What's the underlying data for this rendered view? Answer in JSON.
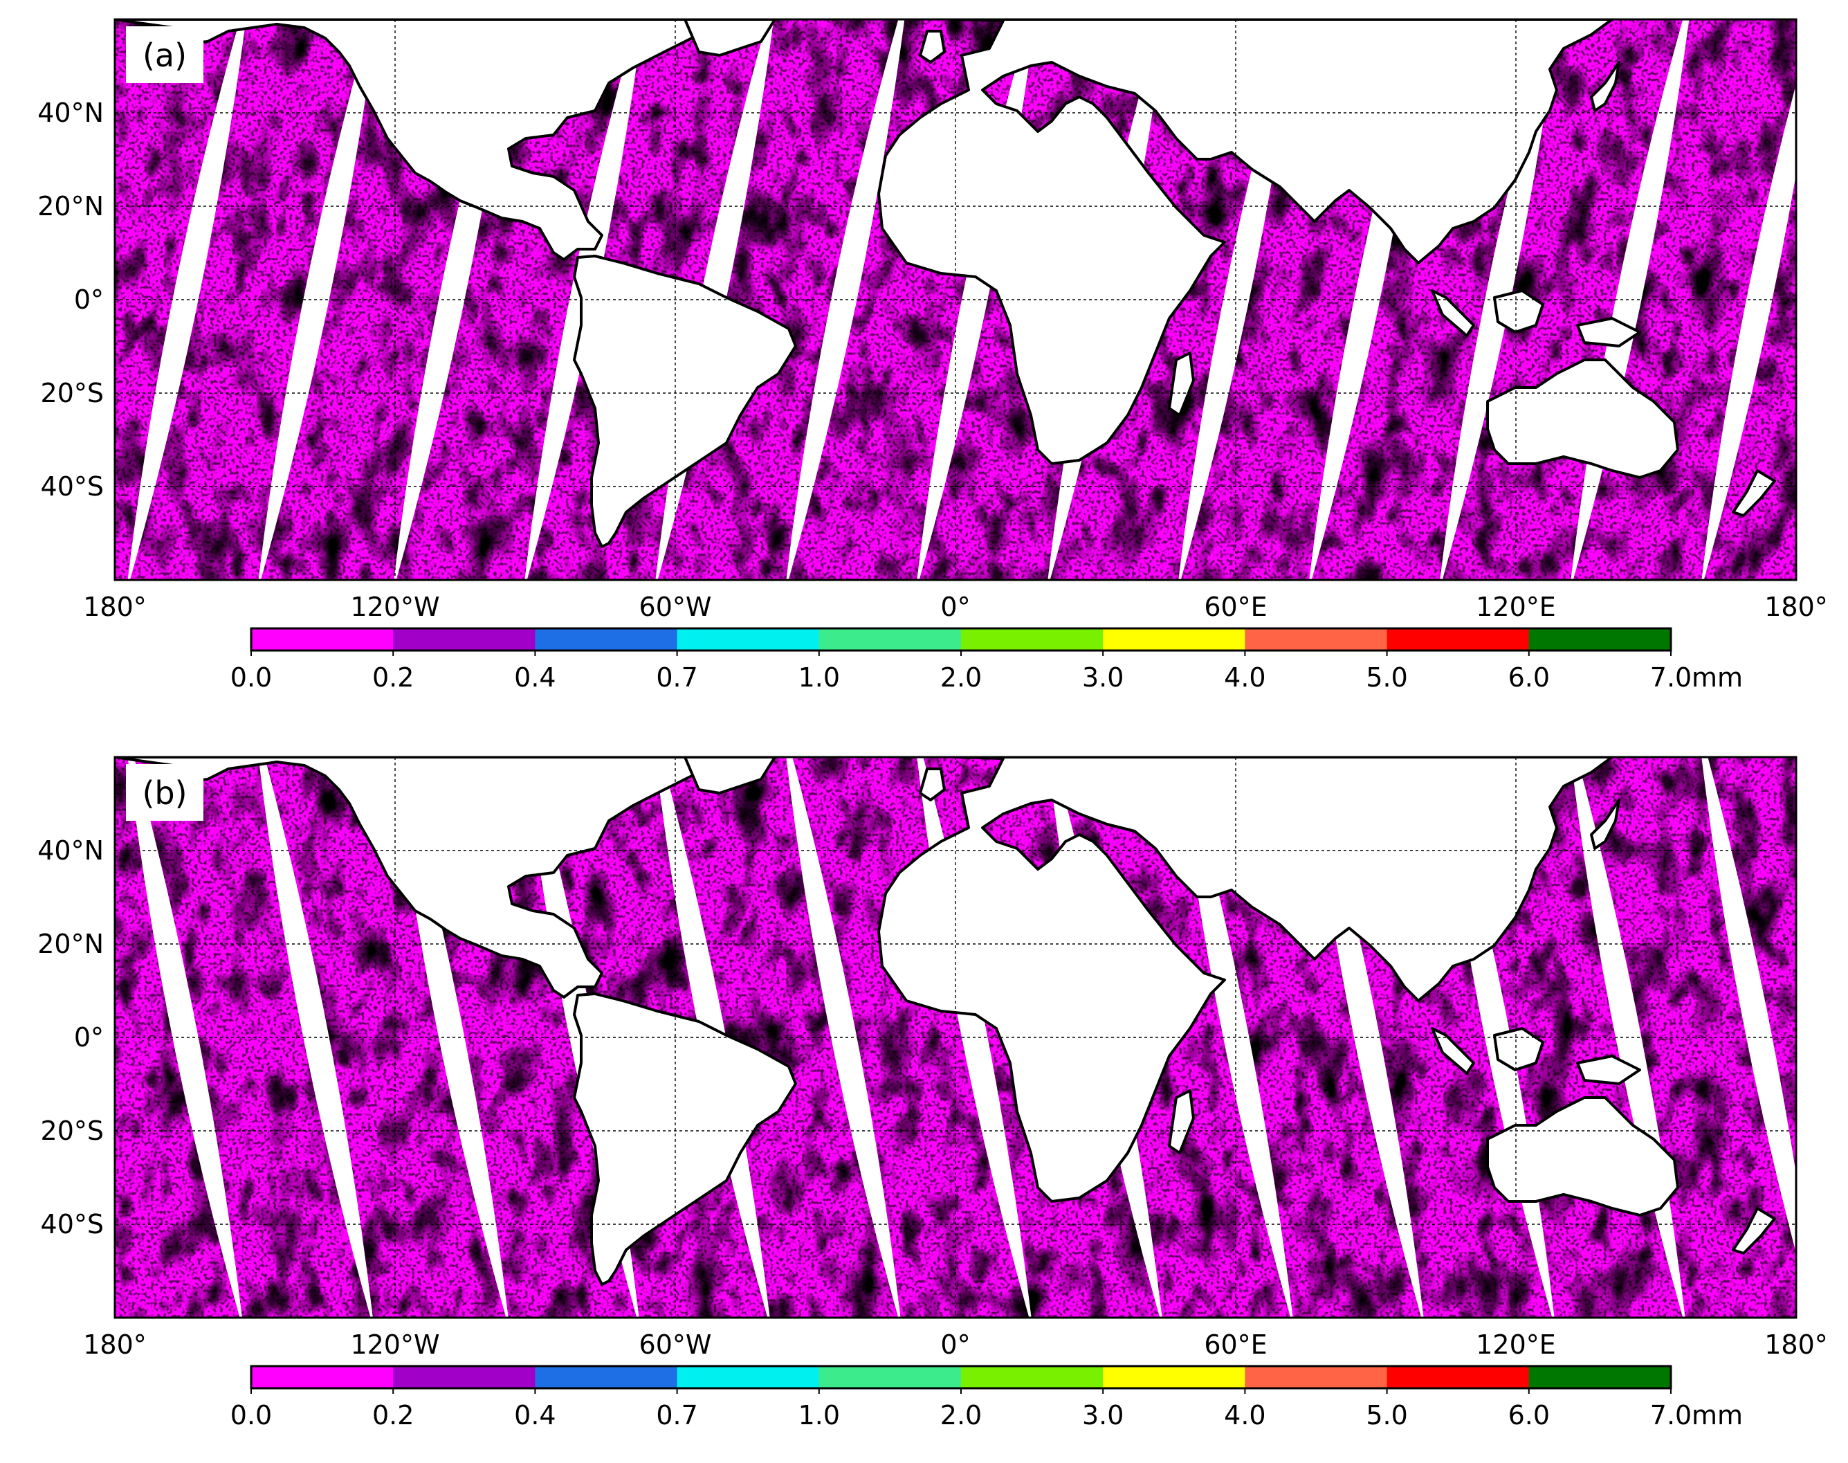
{
  "panels": [
    {
      "id": "a",
      "label": "(a)",
      "swath_tilt": -1
    },
    {
      "id": "b",
      "label": "(b)",
      "swath_tilt": 1
    }
  ],
  "lat_ticks": [
    "40°N",
    "20°N",
    "0°",
    "20°S",
    "40°S"
  ],
  "lon_ticks": [
    "180°",
    "120°W",
    "60°W",
    "0°",
    "60°E",
    "120°E",
    "180°"
  ],
  "lat_range": [
    -60,
    60
  ],
  "lon_range": [
    -180,
    180
  ],
  "colorbar": {
    "unit": "mm",
    "tick_labels": [
      "0.0",
      "0.2",
      "0.4",
      "0.7",
      "1.0",
      "2.0",
      "3.0",
      "4.0",
      "5.0",
      "6.0",
      "7.0"
    ],
    "colors": [
      "#ff00ff",
      "#a000c8",
      "#1e6ee6",
      "#00f0f0",
      "#3ceb8c",
      "#78f000",
      "#ffff00",
      "#ff6446",
      "#ff0000",
      "#007800"
    ]
  },
  "field_colors": {
    "dominant": "#ff00ff",
    "secondary": [
      "#1e6ee6",
      "#00f0f0",
      "#3ceb8c",
      "#a000c8",
      "#78f000"
    ]
  },
  "gridlines": true
}
